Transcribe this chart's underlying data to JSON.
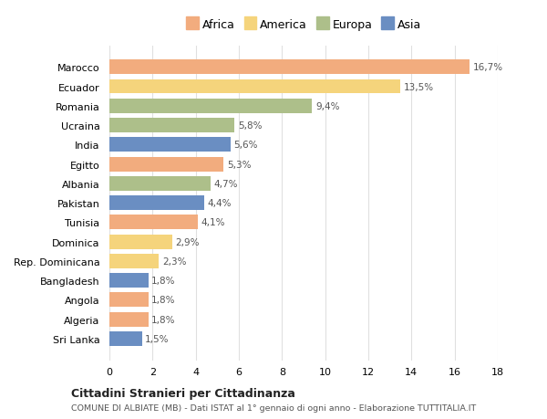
{
  "countries": [
    "Marocco",
    "Ecuador",
    "Romania",
    "Ucraina",
    "India",
    "Egitto",
    "Albania",
    "Pakistan",
    "Tunisia",
    "Dominica",
    "Rep. Dominicana",
    "Bangladesh",
    "Angola",
    "Algeria",
    "Sri Lanka"
  ],
  "values": [
    16.7,
    13.5,
    9.4,
    5.8,
    5.6,
    5.3,
    4.7,
    4.4,
    4.1,
    2.9,
    2.3,
    1.8,
    1.8,
    1.8,
    1.5
  ],
  "labels": [
    "16,7%",
    "13,5%",
    "9,4%",
    "5,8%",
    "5,6%",
    "5,3%",
    "4,7%",
    "4,4%",
    "4,1%",
    "2,9%",
    "2,3%",
    "1,8%",
    "1,8%",
    "1,8%",
    "1,5%"
  ],
  "continents": [
    "Africa",
    "America",
    "Europa",
    "Europa",
    "Asia",
    "Africa",
    "Europa",
    "Asia",
    "Africa",
    "America",
    "America",
    "Asia",
    "Africa",
    "Africa",
    "Asia"
  ],
  "continent_colors": {
    "Africa": "#F2AC7E",
    "America": "#F5D47C",
    "Europa": "#ADBF8A",
    "Asia": "#6A8EC2"
  },
  "legend_order": [
    "Africa",
    "America",
    "Europa",
    "Asia"
  ],
  "title": "Cittadini Stranieri per Cittadinanza",
  "subtitle": "COMUNE DI ALBIATE (MB) - Dati ISTAT al 1° gennaio di ogni anno - Elaborazione TUTTITALIA.IT",
  "xlim": [
    0,
    18
  ],
  "xticks": [
    0,
    2,
    4,
    6,
    8,
    10,
    12,
    14,
    16,
    18
  ],
  "background_color": "#FFFFFF",
  "grid_color": "#E0E0E0"
}
